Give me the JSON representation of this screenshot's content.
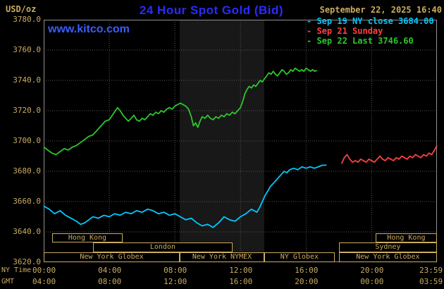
{
  "colors": {
    "background": "#000000",
    "tan": "#CBAC60",
    "title_blue": "#2B2BFF",
    "link_blue": "#3A5CFF",
    "grid": "#565656",
    "border": "#909090"
  },
  "header": {
    "unit": "USD/oz",
    "title": "24 Hour Spot Gold (Bid)",
    "datetime": "September 22, 2025 16:40",
    "watermark": "www.kitco.com"
  },
  "legend": [
    {
      "label": "- Sep 19 NY close 3684.00",
      "color": "#00C8FF"
    },
    {
      "label": "- Sep 21 Sunday",
      "color": "#FF4040"
    },
    {
      "label": "- Sep 22 Last 3746.60",
      "color": "#2DC62D"
    }
  ],
  "axes": {
    "y_ticks": [
      "3780.0",
      "3760.0",
      "3740.0",
      "3720.0",
      "3700.0",
      "3680.0",
      "3660.0",
      "3640.0",
      "3620.0"
    ],
    "tick_minutes": [
      0,
      240,
      480,
      720,
      960,
      1200,
      1439
    ],
    "x_rows": [
      {
        "label": "NY Time",
        "ticks": [
          "00:00",
          "04:00",
          "08:00",
          "12:00",
          "16:00",
          "20:00",
          "23:59"
        ]
      },
      {
        "label": "GMT",
        "ticks": [
          "04:00",
          "08:00",
          "12:00",
          "16:00",
          "20:00",
          "00:00",
          "03:59"
        ]
      }
    ]
  },
  "sessions": [
    {
      "label": "Hong Kong",
      "t0": 30,
      "t1": 290,
      "row": 0
    },
    {
      "label": "London",
      "t0": 180,
      "t1": 691,
      "row": 1
    },
    {
      "label": "New York Globex",
      "t0": 0,
      "t1": 498,
      "row": 2
    },
    {
      "label": "New York NYMEX",
      "t0": 498,
      "t1": 807,
      "row": 2
    },
    {
      "label": "NY Globex",
      "t0": 807,
      "t1": 1065,
      "row": 2
    },
    {
      "label": "Hong Kong",
      "t0": 1214,
      "t1": 1439,
      "row": 0
    },
    {
      "label": "Sydney",
      "t0": 1080,
      "t1": 1439,
      "row": 1
    },
    {
      "label": "New York Globex",
      "t0": 1080,
      "t1": 1439,
      "row": 2
    }
  ],
  "chart_data": {
    "type": "line",
    "title": "24 Hour Spot Gold (Bid)",
    "xlabel": "NY Time",
    "ylabel": "USD/oz",
    "x_unit": "minutes since 00:00 NY time",
    "xlim": [
      0,
      1439
    ],
    "ylim": [
      3620,
      3780
    ],
    "grid": true,
    "legend_position": "top-right",
    "highlight_band": {
      "t0": 498,
      "t1": 807,
      "color": "#181818"
    },
    "series": [
      {
        "key": "sep19-ny-close",
        "name": "Sep 19 NY close 3684.00",
        "color": "#00C8FF",
        "points": [
          [
            0,
            3657
          ],
          [
            20,
            3655
          ],
          [
            40,
            3652
          ],
          [
            60,
            3654
          ],
          [
            80,
            3651
          ],
          [
            100,
            3649
          ],
          [
            120,
            3647
          ],
          [
            135,
            3645
          ],
          [
            150,
            3646
          ],
          [
            165,
            3648
          ],
          [
            180,
            3650
          ],
          [
            200,
            3649
          ],
          [
            220,
            3651
          ],
          [
            240,
            3650
          ],
          [
            260,
            3652
          ],
          [
            280,
            3651
          ],
          [
            300,
            3653
          ],
          [
            320,
            3652
          ],
          [
            340,
            3654
          ],
          [
            360,
            3653
          ],
          [
            380,
            3655
          ],
          [
            400,
            3654
          ],
          [
            420,
            3652
          ],
          [
            440,
            3653
          ],
          [
            460,
            3651
          ],
          [
            480,
            3652
          ],
          [
            500,
            3650
          ],
          [
            520,
            3648
          ],
          [
            540,
            3649
          ],
          [
            560,
            3646
          ],
          [
            580,
            3644
          ],
          [
            600,
            3645
          ],
          [
            620,
            3643
          ],
          [
            640,
            3646
          ],
          [
            660,
            3650
          ],
          [
            680,
            3648
          ],
          [
            700,
            3647
          ],
          [
            720,
            3650
          ],
          [
            740,
            3652
          ],
          [
            760,
            3655
          ],
          [
            780,
            3653
          ],
          [
            790,
            3656
          ],
          [
            800,
            3660
          ],
          [
            810,
            3664
          ],
          [
            820,
            3667
          ],
          [
            830,
            3670
          ],
          [
            840,
            3672
          ],
          [
            850,
            3674
          ],
          [
            860,
            3676
          ],
          [
            870,
            3678
          ],
          [
            880,
            3680
          ],
          [
            890,
            3679
          ],
          [
            900,
            3681
          ],
          [
            915,
            3682
          ],
          [
            930,
            3681
          ],
          [
            945,
            3683
          ],
          [
            960,
            3682
          ],
          [
            975,
            3683
          ],
          [
            990,
            3682
          ],
          [
            1005,
            3683
          ],
          [
            1020,
            3684
          ],
          [
            1035,
            3684
          ]
        ]
      },
      {
        "key": "sep21-sunday",
        "name": "Sep 21 Sunday",
        "color": "#FF4040",
        "points": [
          [
            1090,
            3685
          ],
          [
            1100,
            3689
          ],
          [
            1110,
            3691
          ],
          [
            1120,
            3688
          ],
          [
            1130,
            3686
          ],
          [
            1140,
            3687
          ],
          [
            1150,
            3686
          ],
          [
            1160,
            3688
          ],
          [
            1170,
            3687
          ],
          [
            1180,
            3686
          ],
          [
            1190,
            3688
          ],
          [
            1200,
            3687
          ],
          [
            1210,
            3686
          ],
          [
            1220,
            3688
          ],
          [
            1230,
            3690
          ],
          [
            1240,
            3688
          ],
          [
            1250,
            3687
          ],
          [
            1260,
            3689
          ],
          [
            1270,
            3688
          ],
          [
            1280,
            3687
          ],
          [
            1290,
            3689
          ],
          [
            1300,
            3688
          ],
          [
            1310,
            3690
          ],
          [
            1320,
            3689
          ],
          [
            1330,
            3688
          ],
          [
            1340,
            3690
          ],
          [
            1350,
            3689
          ],
          [
            1360,
            3691
          ],
          [
            1370,
            3690
          ],
          [
            1380,
            3689
          ],
          [
            1390,
            3691
          ],
          [
            1400,
            3690
          ],
          [
            1410,
            3692
          ],
          [
            1420,
            3691
          ],
          [
            1430,
            3694
          ],
          [
            1439,
            3697
          ]
        ]
      },
      {
        "key": "sep22-last",
        "name": "Sep 22 Last 3746.60",
        "color": "#2DC62D",
        "points": [
          [
            0,
            3696
          ],
          [
            15,
            3694
          ],
          [
            30,
            3692
          ],
          [
            45,
            3691
          ],
          [
            60,
            3693
          ],
          [
            75,
            3695
          ],
          [
            90,
            3694
          ],
          [
            105,
            3696
          ],
          [
            120,
            3697
          ],
          [
            135,
            3699
          ],
          [
            150,
            3701
          ],
          [
            165,
            3703
          ],
          [
            180,
            3704
          ],
          [
            195,
            3707
          ],
          [
            210,
            3710
          ],
          [
            225,
            3713
          ],
          [
            240,
            3714
          ],
          [
            255,
            3718
          ],
          [
            270,
            3722
          ],
          [
            280,
            3720
          ],
          [
            290,
            3717
          ],
          [
            300,
            3715
          ],
          [
            310,
            3713
          ],
          [
            320,
            3715
          ],
          [
            330,
            3717
          ],
          [
            340,
            3714
          ],
          [
            350,
            3713
          ],
          [
            360,
            3715
          ],
          [
            370,
            3714
          ],
          [
            380,
            3716
          ],
          [
            390,
            3718
          ],
          [
            400,
            3717
          ],
          [
            410,
            3719
          ],
          [
            420,
            3718
          ],
          [
            430,
            3720
          ],
          [
            440,
            3719
          ],
          [
            450,
            3721
          ],
          [
            460,
            3722
          ],
          [
            470,
            3721
          ],
          [
            480,
            3723
          ],
          [
            490,
            3724
          ],
          [
            500,
            3725
          ],
          [
            510,
            3724
          ],
          [
            520,
            3723
          ],
          [
            530,
            3721
          ],
          [
            540,
            3716
          ],
          [
            548,
            3710
          ],
          [
            556,
            3712
          ],
          [
            564,
            3709
          ],
          [
            572,
            3713
          ],
          [
            580,
            3716
          ],
          [
            590,
            3715
          ],
          [
            600,
            3717
          ],
          [
            610,
            3715
          ],
          [
            620,
            3714
          ],
          [
            630,
            3716
          ],
          [
            640,
            3715
          ],
          [
            650,
            3717
          ],
          [
            660,
            3716
          ],
          [
            670,
            3718
          ],
          [
            680,
            3717
          ],
          [
            690,
            3719
          ],
          [
            700,
            3718
          ],
          [
            710,
            3720
          ],
          [
            720,
            3722
          ],
          [
            728,
            3726
          ],
          [
            736,
            3731
          ],
          [
            744,
            3734
          ],
          [
            752,
            3736
          ],
          [
            760,
            3735
          ],
          [
            768,
            3737
          ],
          [
            776,
            3736
          ],
          [
            784,
            3738
          ],
          [
            792,
            3740
          ],
          [
            800,
            3739
          ],
          [
            808,
            3741
          ],
          [
            816,
            3743
          ],
          [
            824,
            3745
          ],
          [
            832,
            3744
          ],
          [
            840,
            3746
          ],
          [
            848,
            3744
          ],
          [
            856,
            3743
          ],
          [
            864,
            3745
          ],
          [
            872,
            3747
          ],
          [
            880,
            3746
          ],
          [
            888,
            3744
          ],
          [
            896,
            3745
          ],
          [
            904,
            3747
          ],
          [
            912,
            3746
          ],
          [
            920,
            3748
          ],
          [
            928,
            3747
          ],
          [
            936,
            3746
          ],
          [
            944,
            3747
          ],
          [
            952,
            3746
          ],
          [
            960,
            3748
          ],
          [
            968,
            3747
          ],
          [
            976,
            3746
          ],
          [
            984,
            3747
          ],
          [
            992,
            3746
          ],
          [
            1000,
            3746.6
          ]
        ]
      }
    ]
  }
}
